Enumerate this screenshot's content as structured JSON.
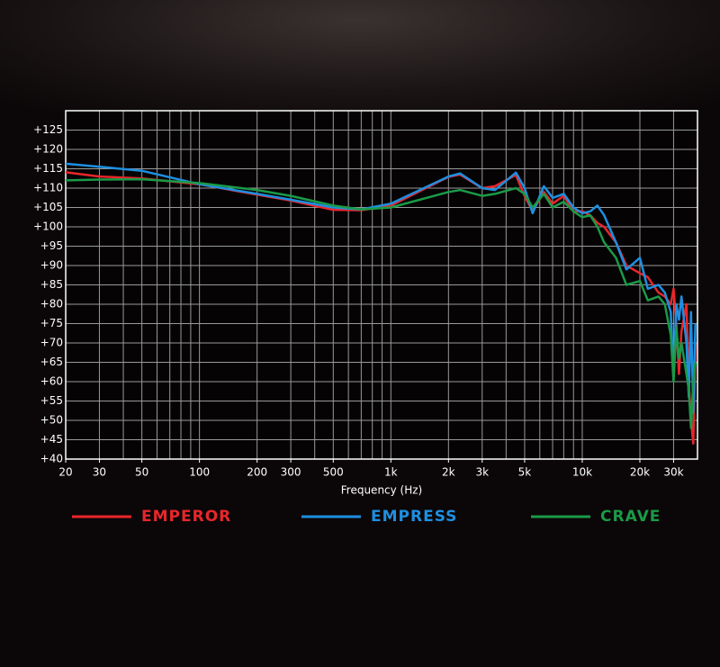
{
  "chart_data": {
    "type": "line",
    "x_label": "Frequency (Hz)",
    "x_scale": "log",
    "xlim": [
      20,
      40000
    ],
    "ylim": [
      40,
      130
    ],
    "grid": true,
    "legend": "bottom",
    "xticks": [
      20,
      30,
      50,
      100,
      200,
      300,
      500,
      {
        "value": 1000,
        "label": "1k"
      },
      {
        "value": 2000,
        "label": "2k"
      },
      {
        "value": 3000,
        "label": "3k"
      },
      {
        "value": 5000,
        "label": "5k"
      },
      {
        "value": 10000,
        "label": "10k"
      },
      {
        "value": 20000,
        "label": "20k"
      },
      {
        "value": 30000,
        "label": "30k"
      }
    ],
    "xgrid": [
      20,
      30,
      40,
      50,
      60,
      70,
      80,
      90,
      100,
      200,
      300,
      400,
      500,
      600,
      700,
      800,
      900,
      1000,
      2000,
      3000,
      4000,
      5000,
      6000,
      7000,
      8000,
      9000,
      10000,
      20000,
      30000
    ],
    "yticks": [
      {
        "value": 40,
        "label": "+40"
      },
      {
        "value": 45,
        "label": "+45"
      },
      {
        "value": 50,
        "label": "+50"
      },
      {
        "value": 55,
        "label": "+55"
      },
      {
        "value": 60,
        "label": "+60"
      },
      {
        "value": 65,
        "label": "+65"
      },
      {
        "value": 70,
        "label": "+70"
      },
      {
        "value": 75,
        "label": "+75"
      },
      {
        "value": 80,
        "label": "+80"
      },
      {
        "value": 85,
        "label": "+85"
      },
      {
        "value": 90,
        "label": "+90"
      },
      {
        "value": 95,
        "label": "+95"
      },
      {
        "value": 100,
        "label": "+100"
      },
      {
        "value": 105,
        "label": "+105"
      },
      {
        "value": 110,
        "label": "+110"
      },
      {
        "value": 115,
        "label": "+115"
      },
      {
        "value": 120,
        "label": "+120"
      },
      {
        "value": 125,
        "label": "+125"
      }
    ],
    "x": [
      20,
      30,
      50,
      100,
      200,
      300,
      500,
      700,
      1000,
      2000,
      2300,
      3000,
      3500,
      4500,
      5000,
      5500,
      6300,
      7000,
      8000,
      9000,
      10000,
      11000,
      12000,
      13000,
      15000,
      17000,
      20000,
      22000,
      25000,
      27000,
      29000,
      30000,
      31000,
      32000,
      33000,
      35000,
      36000,
      37000,
      38000,
      39000
    ],
    "series": [
      {
        "name": "EMPEROR",
        "color": "#e8262b",
        "values": [
          114.1,
          113,
          112.5,
          111,
          108.3,
          106.8,
          104.4,
          104.3,
          105.5,
          112.9,
          113.5,
          110,
          110.5,
          113.4,
          108,
          104,
          109,
          106,
          108,
          104,
          104,
          103,
          101,
          100,
          96,
          90,
          88,
          87,
          83,
          82,
          80,
          84,
          75,
          62,
          73,
          80,
          60,
          50,
          44,
          70
        ]
      },
      {
        "name": "EMPRESS",
        "color": "#1e8fe0",
        "values": [
          116.3,
          115.5,
          114.5,
          111,
          108.5,
          107,
          105,
          104.5,
          106,
          113,
          113.8,
          110,
          109.5,
          114,
          110,
          103.5,
          110.5,
          107.5,
          108.5,
          105,
          103.5,
          104,
          105.5,
          103,
          96,
          89,
          92,
          84,
          85,
          83,
          78,
          62,
          80,
          76,
          82,
          70,
          56,
          78,
          52,
          75
        ]
      },
      {
        "name": "CRAVE",
        "color": "#1a9a48",
        "values": [
          112,
          112.2,
          112.3,
          111.3,
          109.5,
          108,
          105.5,
          104.5,
          105,
          109,
          109.5,
          108,
          108.5,
          110,
          108.5,
          105,
          108.5,
          105,
          106.5,
          104,
          102.5,
          103,
          100,
          96,
          92,
          85,
          86,
          81,
          82,
          80,
          72,
          60,
          74,
          66,
          70,
          62,
          58,
          48,
          60,
          65
        ]
      }
    ]
  }
}
